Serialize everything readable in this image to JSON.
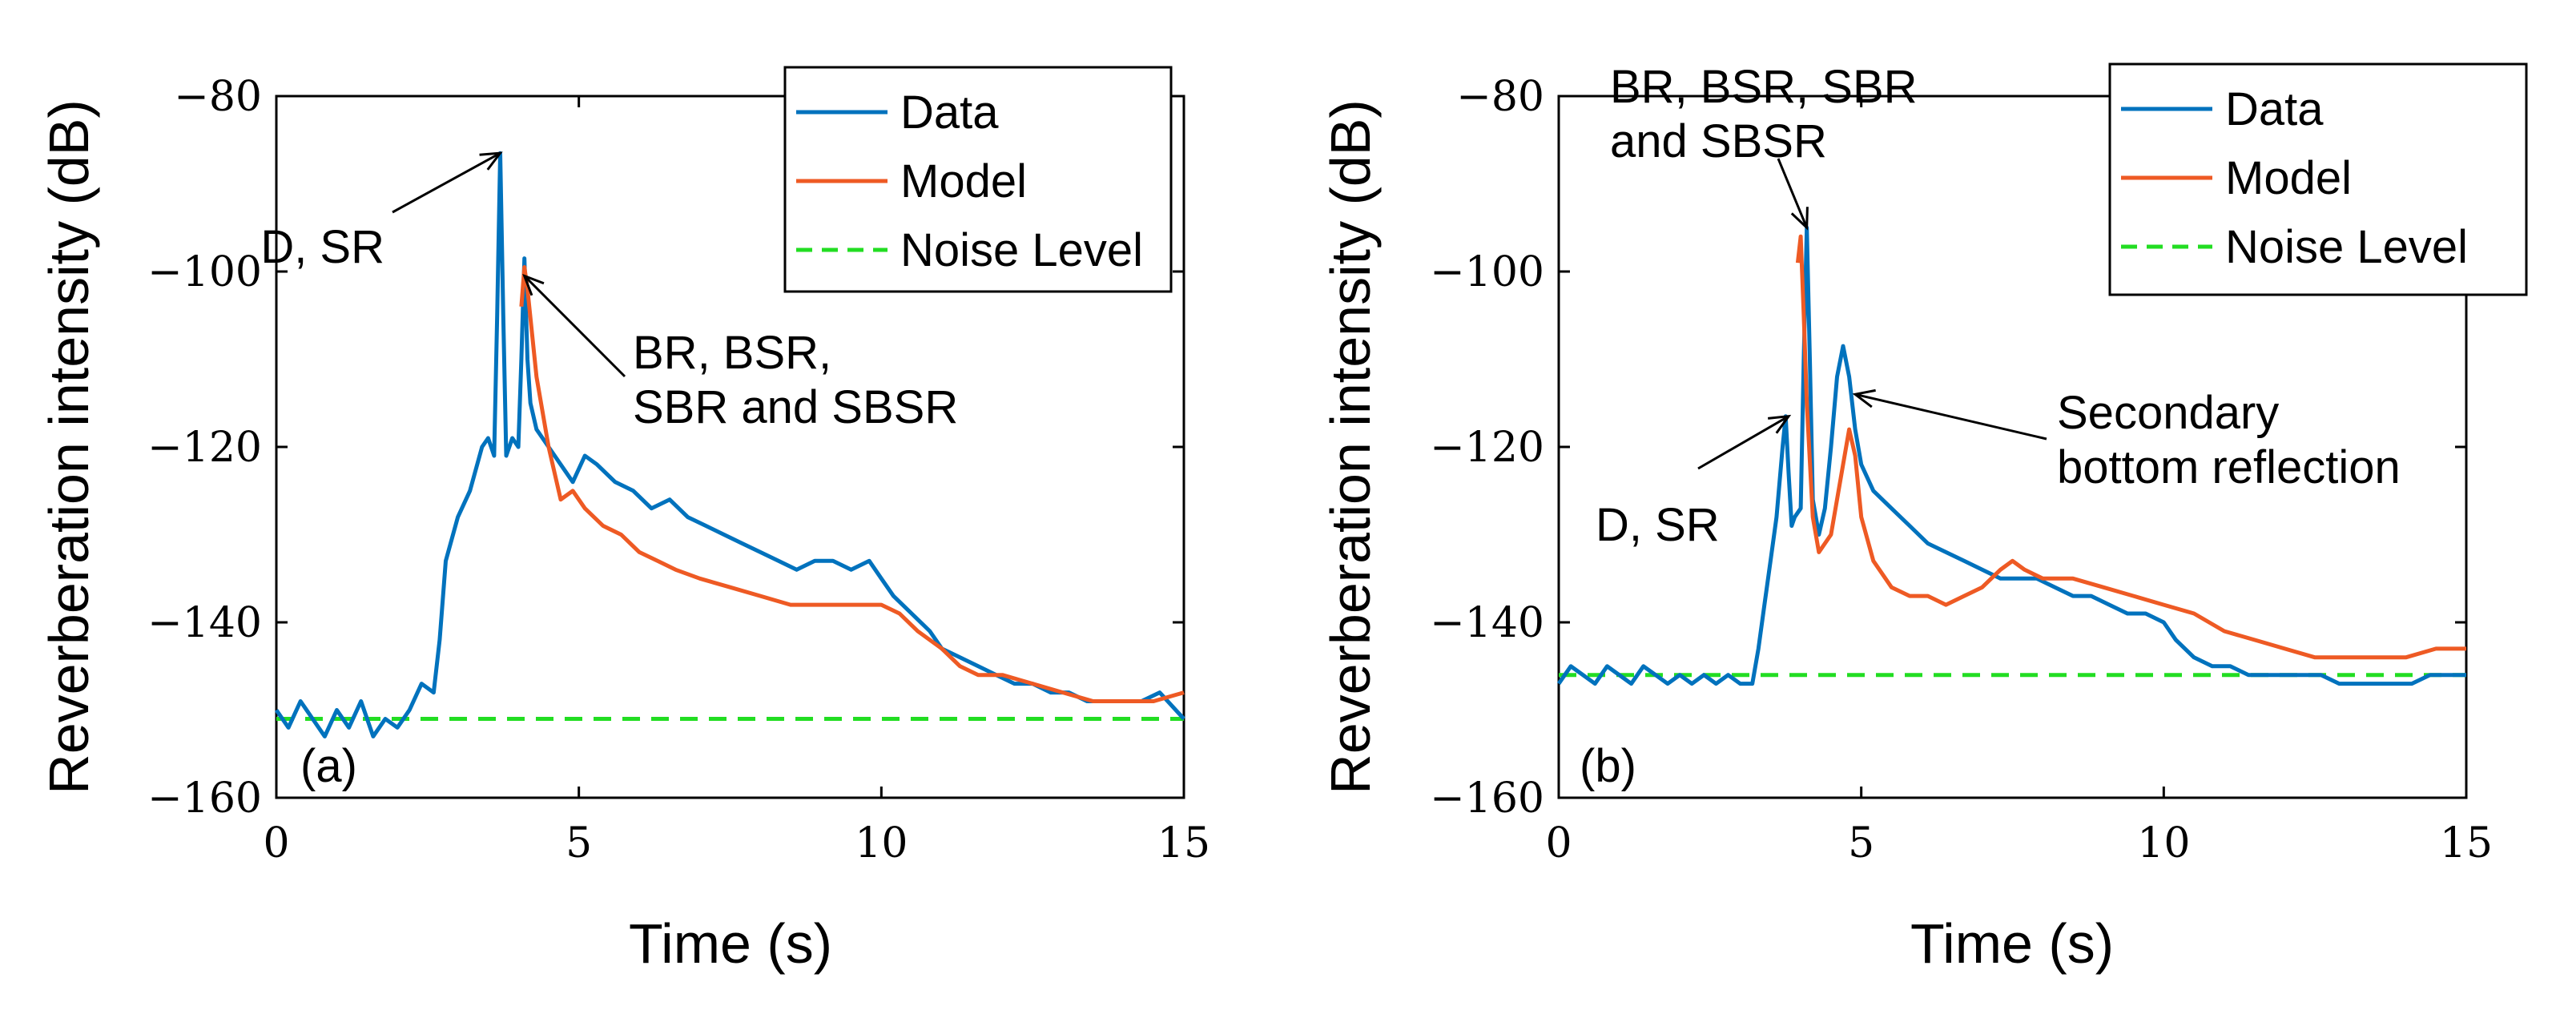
{
  "chart_data": [
    {
      "type": "line",
      "panel_label": "(a)",
      "xlabel": "Time (s)",
      "ylabel": "Reverberation intensity (dB)",
      "xlim": [
        0,
        15
      ],
      "ylim": [
        -160,
        -80
      ],
      "xticks": [
        0,
        5,
        10,
        15
      ],
      "yticks": [
        -80,
        -100,
        -120,
        -140,
        -160
      ],
      "xtick_labels": [
        "0",
        "5",
        "10",
        "15"
      ],
      "ytick_labels": [
        "−80",
        "−100",
        "−120",
        "−140",
        "−160"
      ],
      "grid": false,
      "legend": {
        "position": "top-right",
        "entries": [
          {
            "name": "Data",
            "color": "#0072BD",
            "style": "solid"
          },
          {
            "name": "Model",
            "color": "#EE5A24",
            "style": "solid"
          },
          {
            "name": "Noise Level",
            "color": "#22DD22",
            "style": "dashed"
          }
        ]
      },
      "annotations": [
        {
          "lines": [
            "D, SR"
          ],
          "target": [
            3.7,
            -86.5
          ]
        },
        {
          "lines": [
            "BR, BSR,",
            "SBR and SBSR"
          ],
          "target": [
            4.1,
            -100.5
          ]
        }
      ],
      "series": [
        {
          "name": "Data",
          "color": "#0072BD",
          "x": [
            0,
            0.2,
            0.4,
            0.6,
            0.8,
            1.0,
            1.2,
            1.4,
            1.6,
            1.8,
            2.0,
            2.2,
            2.4,
            2.6,
            2.7,
            2.8,
            3.0,
            3.2,
            3.4,
            3.5,
            3.6,
            3.65,
            3.7,
            3.75,
            3.8,
            3.9,
            4.0,
            4.05,
            4.1,
            4.15,
            4.2,
            4.3,
            4.5,
            4.7,
            4.9,
            5.1,
            5.3,
            5.6,
            5.9,
            6.2,
            6.5,
            6.8,
            7.1,
            7.4,
            7.7,
            8.0,
            8.3,
            8.6,
            8.9,
            9.2,
            9.5,
            9.8,
            10.0,
            10.2,
            10.5,
            10.8,
            11.0,
            11.3,
            11.6,
            11.9,
            12.2,
            12.5,
            12.8,
            13.1,
            13.4,
            13.7,
            14.0,
            14.3,
            14.6,
            15.0
          ],
          "y": [
            -150,
            -152,
            -149,
            -151,
            -153,
            -150,
            -152,
            -149,
            -153,
            -151,
            -152,
            -150,
            -147,
            -148,
            -142,
            -133,
            -128,
            -125,
            -120,
            -119,
            -121,
            -105,
            -86.5,
            -105,
            -121,
            -119,
            -120,
            -110,
            -98.5,
            -110,
            -115,
            -118,
            -120,
            -122,
            -124,
            -121,
            -122,
            -124,
            -125,
            -127,
            -126,
            -128,
            -129,
            -130,
            -131,
            -132,
            -133,
            -134,
            -133,
            -133,
            -134,
            -133,
            -135,
            -137,
            -139,
            -141,
            -143,
            -144,
            -145,
            -146,
            -147,
            -147,
            -148,
            -148,
            -149,
            -149,
            -149,
            -149,
            -148,
            -151
          ]
        },
        {
          "name": "Model",
          "color": "#EE5A24",
          "x": [
            4.05,
            4.1,
            4.15,
            4.3,
            4.5,
            4.7,
            4.9,
            5.1,
            5.4,
            5.7,
            6.0,
            6.3,
            6.6,
            7.0,
            7.5,
            8.0,
            8.5,
            9.0,
            9.5,
            10.0,
            10.3,
            10.6,
            11.0,
            11.3,
            11.6,
            12.0,
            12.5,
            13.0,
            13.5,
            14.0,
            14.5,
            15.0
          ],
          "y": [
            -104,
            -99.5,
            -102,
            -112,
            -120,
            -126,
            -125,
            -127,
            -129,
            -130,
            -132,
            -133,
            -134,
            -135,
            -136,
            -137,
            -138,
            -138,
            -138,
            -138,
            -139,
            -141,
            -143,
            -145,
            -146,
            -146,
            -147,
            -148,
            -149,
            -149,
            -149,
            -148
          ]
        },
        {
          "name": "Noise Level",
          "color": "#22DD22",
          "x": [
            0,
            15
          ],
          "y": [
            -151,
            -151
          ]
        }
      ]
    },
    {
      "type": "line",
      "panel_label": "(b)",
      "xlabel": "Time (s)",
      "ylabel": "Reverberation intensity (dB)",
      "xlim": [
        0,
        15
      ],
      "ylim": [
        -160,
        -80
      ],
      "xticks": [
        0,
        5,
        10,
        15
      ],
      "yticks": [
        -80,
        -100,
        -120,
        -140,
        -160
      ],
      "xtick_labels": [
        "0",
        "5",
        "10",
        "15"
      ],
      "ytick_labels": [
        "−80",
        "−100",
        "−120",
        "−140",
        "−160"
      ],
      "grid": false,
      "legend": {
        "position": "top-right",
        "entries": [
          {
            "name": "Data",
            "color": "#0072BD",
            "style": "solid"
          },
          {
            "name": "Model",
            "color": "#EE5A24",
            "style": "solid"
          },
          {
            "name": "Noise Level",
            "color": "#22DD22",
            "style": "dashed"
          }
        ]
      },
      "annotations": [
        {
          "lines": [
            "BR, BSR, SBR",
            "and SBSR"
          ],
          "target": [
            4.1,
            -95
          ]
        },
        {
          "lines": [
            "D, SR"
          ],
          "target": [
            3.8,
            -116.5
          ]
        },
        {
          "lines": [
            "Secondary",
            "bottom reflection"
          ],
          "target": [
            4.9,
            -114
          ]
        }
      ],
      "series": [
        {
          "name": "Data",
          "color": "#0072BD",
          "x": [
            0,
            0.2,
            0.4,
            0.6,
            0.8,
            1.0,
            1.2,
            1.4,
            1.6,
            1.8,
            2.0,
            2.2,
            2.4,
            2.6,
            2.8,
            3.0,
            3.2,
            3.3,
            3.4,
            3.5,
            3.6,
            3.7,
            3.75,
            3.8,
            3.85,
            3.9,
            4.0,
            4.05,
            4.1,
            4.15,
            4.2,
            4.3,
            4.4,
            4.5,
            4.6,
            4.7,
            4.8,
            4.9,
            5.0,
            5.2,
            5.5,
            5.8,
            6.1,
            6.4,
            6.7,
            7.0,
            7.3,
            7.6,
            7.9,
            8.2,
            8.5,
            8.8,
            9.1,
            9.4,
            9.7,
            10.0,
            10.2,
            10.5,
            10.8,
            11.1,
            11.4,
            11.7,
            12.0,
            12.3,
            12.6,
            12.9,
            13.2,
            13.5,
            13.8,
            14.1,
            14.4,
            14.7,
            15.0
          ],
          "y": [
            -147,
            -145,
            -146,
            -147,
            -145,
            -146,
            -147,
            -145,
            -146,
            -147,
            -146,
            -147,
            -146,
            -147,
            -146,
            -147,
            -147,
            -143,
            -138,
            -133,
            -128,
            -120,
            -116.5,
            -123,
            -129,
            -128,
            -127,
            -110,
            -95,
            -110,
            -126,
            -130,
            -127,
            -120,
            -112,
            -108.5,
            -112,
            -118,
            -122,
            -125,
            -127,
            -129,
            -131,
            -132,
            -133,
            -134,
            -135,
            -135,
            -135,
            -136,
            -137,
            -137,
            -138,
            -139,
            -139,
            -140,
            -142,
            -144,
            -145,
            -145,
            -146,
            -146,
            -146,
            -146,
            -146,
            -147,
            -147,
            -147,
            -147,
            -147,
            -146,
            -146,
            -146
          ]
        },
        {
          "name": "Model",
          "color": "#EE5A24",
          "x": [
            3.95,
            4.0,
            4.05,
            4.1,
            4.2,
            4.3,
            4.5,
            4.7,
            4.8,
            4.9,
            5.0,
            5.2,
            5.5,
            5.8,
            6.1,
            6.4,
            6.7,
            7.0,
            7.3,
            7.5,
            7.7,
            8.0,
            8.5,
            9.0,
            9.5,
            10.0,
            10.5,
            11.0,
            11.5,
            12.0,
            12.5,
            13.0,
            13.5,
            14.0,
            14.5,
            15.0
          ],
          "y": [
            -99,
            -96,
            -105,
            -115,
            -128,
            -132,
            -130,
            -122,
            -118,
            -121,
            -128,
            -133,
            -136,
            -137,
            -137,
            -138,
            -137,
            -136,
            -134,
            -133,
            -134,
            -135,
            -135,
            -136,
            -137,
            -138,
            -139,
            -141,
            -142,
            -143,
            -144,
            -144,
            -144,
            -144,
            -143,
            -143
          ]
        },
        {
          "name": "Noise Level",
          "color": "#22DD22",
          "x": [
            0,
            15
          ],
          "y": [
            -146,
            -146
          ]
        }
      ]
    }
  ]
}
